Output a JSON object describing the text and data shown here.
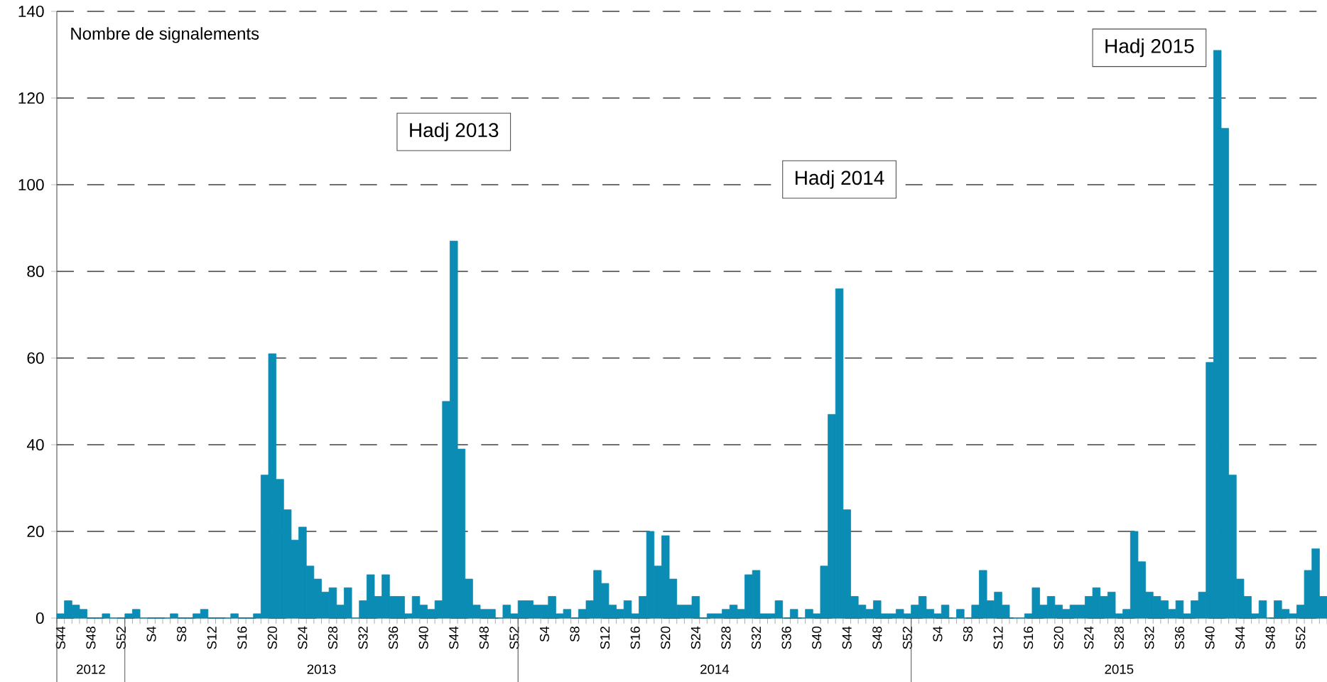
{
  "chart_data": {
    "type": "bar",
    "ylabel": "Nombre de signalements",
    "categories": [
      "S44",
      null,
      null,
      null,
      "S48",
      null,
      null,
      null,
      "S52",
      null,
      null,
      null,
      "S4",
      null,
      null,
      null,
      "S8",
      null,
      null,
      null,
      "S12",
      null,
      null,
      null,
      "S16",
      null,
      null,
      null,
      "S20",
      null,
      null,
      null,
      "S24",
      null,
      null,
      null,
      "S28",
      null,
      null,
      null,
      "S32",
      null,
      null,
      null,
      "S36",
      null,
      null,
      null,
      "S40",
      null,
      null,
      null,
      "S44",
      null,
      null,
      null,
      "S48",
      null,
      null,
      null,
      "S52",
      null,
      null,
      null,
      "S4",
      null,
      null,
      null,
      "S8",
      null,
      null,
      null,
      "S12",
      null,
      null,
      null,
      "S16",
      null,
      null,
      null,
      "S20",
      null,
      null,
      null,
      "S24",
      null,
      null,
      null,
      "S28",
      null,
      null,
      null,
      "S32",
      null,
      null,
      null,
      "S36",
      null,
      null,
      null,
      "S40",
      null,
      null,
      null,
      "S44",
      null,
      null,
      null,
      "S48",
      null,
      null,
      null,
      "S52",
      null,
      null,
      null,
      "S4",
      null,
      null,
      null,
      "S8",
      null,
      null,
      null,
      "S12",
      null,
      null,
      null,
      "S16",
      null,
      null,
      null,
      "S20",
      null,
      null,
      null,
      "S24",
      null,
      null,
      null,
      "S28",
      null,
      null,
      null,
      "S32",
      null,
      null,
      null,
      "S36",
      null,
      null,
      null,
      "S40",
      null,
      null,
      null,
      "S44",
      null,
      null,
      null,
      "S48",
      null,
      null,
      null,
      "S52",
      null,
      null,
      null
    ],
    "values": [
      1,
      4,
      3,
      2,
      0,
      0,
      1,
      0,
      0,
      1,
      2,
      0,
      0,
      0,
      0,
      1,
      0,
      0,
      1,
      2,
      0,
      0,
      0,
      1,
      0,
      0,
      1,
      33,
      61,
      32,
      25,
      18,
      21,
      12,
      9,
      6,
      7,
      3,
      7,
      0,
      4,
      10,
      5,
      10,
      5,
      5,
      1,
      5,
      3,
      2,
      4,
      50,
      87,
      39,
      9,
      3,
      2,
      2,
      0,
      3,
      1,
      4,
      4,
      3,
      3,
      5,
      1,
      2,
      0,
      2,
      4,
      11,
      8,
      3,
      2,
      4,
      1,
      5,
      20,
      12,
      19,
      9,
      3,
      3,
      5,
      0,
      1,
      1,
      2,
      3,
      2,
      10,
      11,
      1,
      1,
      4,
      0,
      2,
      0,
      2,
      1,
      12,
      47,
      76,
      25,
      5,
      3,
      2,
      4,
      1,
      1,
      2,
      1,
      3,
      5,
      2,
      1,
      3,
      0,
      2,
      0,
      3,
      11,
      4,
      6,
      3,
      0,
      0,
      1,
      7,
      3,
      5,
      3,
      2,
      3,
      3,
      5,
      7,
      5,
      6,
      1,
      2,
      20,
      13,
      6,
      5,
      4,
      2,
      4,
      1,
      4,
      6,
      59,
      131,
      113,
      33,
      9,
      5,
      1,
      4,
      0,
      4,
      2,
      1,
      3,
      11,
      16,
      5
    ],
    "color": "#0a8cb4",
    "ylim": [
      0,
      140
    ],
    "yticks": [
      0,
      20,
      40,
      60,
      80,
      100,
      120,
      140
    ],
    "grid": "y",
    "annotations": [
      "2012",
      "2013",
      "2014",
      "2015",
      "Hadj 2013",
      "Hadj 2014",
      "Hadj 2015"
    ]
  }
}
